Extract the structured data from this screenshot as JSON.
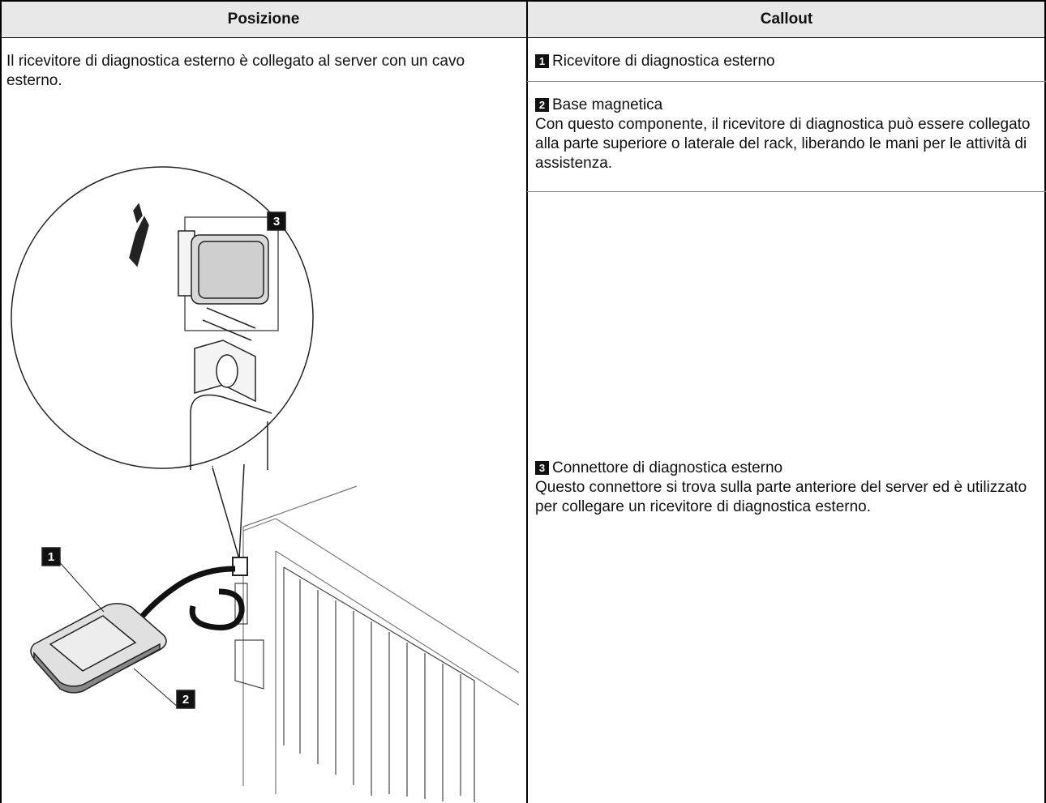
{
  "table": {
    "header": [
      "Posizione",
      "Callout"
    ],
    "position_text": "Il ricevitore di diagnostica esterno è collegato al server con un cavo esterno.",
    "callouts": [
      {
        "number": "1",
        "title": "Ricevitore di diagnostica esterno"
      },
      {
        "number": "2",
        "title": "Base magnetica",
        "description": "Con questo componente, il ricevitore di diagnostica può essere collegato alla parte superiore o laterale del rack, liberando le mani per le attività di assistenza."
      },
      {
        "number": "3",
        "title": "Connettore di diagnostica esterno",
        "description": "Questo connettore si trova sulla parte anteriore del server ed è utilizzato per collegare un ricevitore di diagnostica esterno."
      }
    ]
  },
  "figure": {
    "labels": [
      "3",
      "1",
      "2"
    ]
  }
}
